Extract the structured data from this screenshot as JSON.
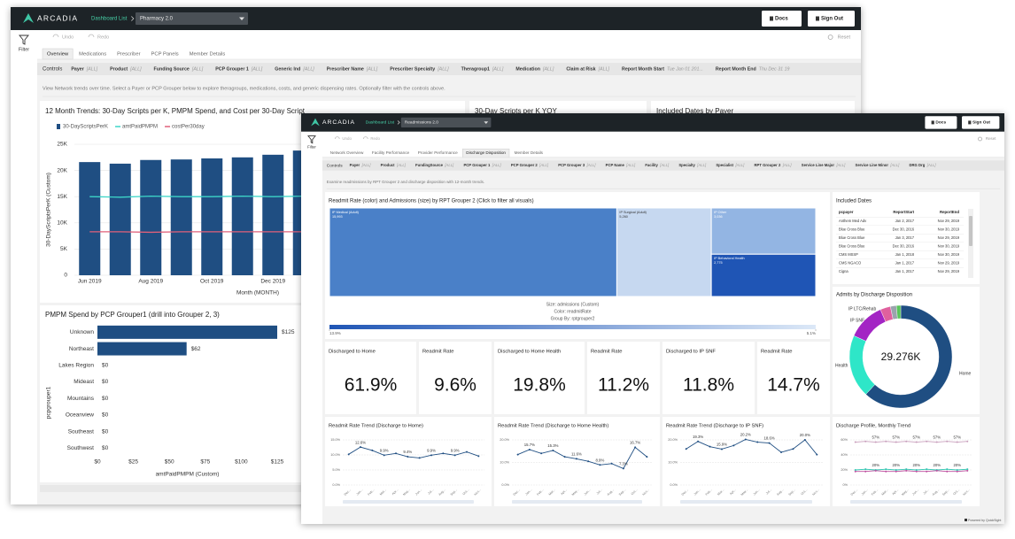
{
  "back": {
    "header": {
      "logo": "ARCADIA",
      "nav": "Dashboard List",
      "dashboard": "Pharmacy 2.0",
      "docs": "Docs",
      "signout": "Sign Out"
    },
    "sidebar": {
      "filter": "Filter"
    },
    "toolbar": {
      "undo": "Undo",
      "redo": "Redo",
      "reset": "Reset"
    },
    "tabs": [
      "Overview",
      "Medications",
      "Prescriber",
      "PCP Panels",
      "Member Details"
    ],
    "controls": {
      "label": "Controls",
      "items": [
        {
          "name": "Payer",
          "value": "[ALL]"
        },
        {
          "name": "Product",
          "value": "[ALL]"
        },
        {
          "name": "Funding Source",
          "value": "[ALL]"
        },
        {
          "name": "PCP Grouper 1",
          "value": "[ALL]"
        },
        {
          "name": "Generic Ind",
          "value": "[ALL]"
        },
        {
          "name": "Prescriber Name",
          "value": "[ALL]"
        },
        {
          "name": "Prescriber Specialty",
          "value": "[ALL]"
        },
        {
          "name": "Theragroup1",
          "value": "[ALL]"
        },
        {
          "name": "Medication",
          "value": "[ALL]"
        },
        {
          "name": "Claim at Risk",
          "value": "[ALL]"
        },
        {
          "name": "Report Month Start",
          "value": "Tue Jan 01 201..."
        },
        {
          "name": "Report Month End",
          "value": "Thu Dec 31 19"
        }
      ]
    },
    "description": "View Network trends over time. Select a Payer or PCP Grouper below to explore theragroups, medications, costs, and generic dispensing rates. Optionally filter with the controls above.",
    "cards": [
      "30-Day Scripts per K YOY",
      "Included Dates by Payer"
    ]
  },
  "front": {
    "header": {
      "logo": "ARCADIA",
      "nav": "Dashboard List",
      "dashboard": "Readmissions 2.0",
      "docs": "Docs",
      "signout": "Sign Out"
    },
    "sidebar": {
      "filter": "Filter"
    },
    "toolbar": {
      "undo": "Undo",
      "redo": "Redo",
      "reset": "Reset"
    },
    "tabs": [
      "Network Overview",
      "Facility Performance",
      "Provider Performance",
      "Discharge Disposition",
      "Member Details"
    ],
    "controls": {
      "label": "Controls",
      "items": [
        {
          "name": "Payer",
          "value": "[ALL]"
        },
        {
          "name": "Product",
          "value": "[ALL]"
        },
        {
          "name": "FundingSource",
          "value": "[ALL]"
        },
        {
          "name": "PCP Grouper 1",
          "value": "[ALL]"
        },
        {
          "name": "PCP Grouper 2",
          "value": "[ALL]"
        },
        {
          "name": "PCP Grouper 3",
          "value": "[ALL]"
        },
        {
          "name": "PCP Name",
          "value": "[ALL]"
        },
        {
          "name": "Facility",
          "value": "[ALL]"
        },
        {
          "name": "Specialty",
          "value": "[ALL]"
        },
        {
          "name": "Specialist",
          "value": "[ALL]"
        },
        {
          "name": "RPT Grouper 2",
          "value": "[ALL]"
        },
        {
          "name": "Service Line Major",
          "value": "[ALL]"
        },
        {
          "name": "Service Line Minor",
          "value": "[ALL]"
        },
        {
          "name": "DRG Drg",
          "value": "[ALL]"
        }
      ]
    },
    "description": "Examine readmissions by RPT Grouper 2 and discharge disposition with 12-month trends.",
    "kpis": [
      {
        "label": "Discharged to Home",
        "value": "61.9%"
      },
      {
        "label": "Readmit Rate",
        "value": "9.6%"
      },
      {
        "label": "Discharged to Home Health",
        "value": "19.8%"
      },
      {
        "label": "Readmit Rate",
        "value": "11.2%"
      },
      {
        "label": "Discharged to IP SNF",
        "value": "11.8%"
      },
      {
        "label": "Readmit Rate",
        "value": "14.7%"
      }
    ],
    "table": {
      "title": "Included Dates",
      "headers": [
        "pcpayer",
        "ReportStart",
        "ReportEnd"
      ],
      "rows": [
        [
          "Anthem Med Adv",
          "Jan 2, 2017",
          "Nov 29, 2019"
        ],
        [
          "Blue Cross Blue",
          "Dec 30, 2016",
          "Nov 30, 2019"
        ],
        [
          "Blue Cross Blue",
          "Jan 3, 2017",
          "Nov 29, 2019"
        ],
        [
          "Blue Cross Blue",
          "Dec 30, 2016",
          "Nov 30, 2019"
        ],
        [
          "CMS MSSP",
          "Jan 1, 2018",
          "Nov 30, 2019"
        ],
        [
          "CMS NGACO",
          "Jan 1, 2017",
          "Nov 29, 2019"
        ],
        [
          "Cigna",
          "Jan 1, 2017",
          "Nov 29, 2019"
        ]
      ]
    },
    "footer": "Powered by QuickSight"
  },
  "chart_data": [
    {
      "type": "bar",
      "title": "12 Month Trends: 30-Day Scripts per K, PMPM Spend, and Cost per 30-Day Script",
      "categories": [
        "Jun 2019",
        null,
        "Aug 2019",
        null,
        "Oct 2019",
        null,
        "Dec 2019",
        null
      ],
      "series": [
        {
          "name": "30-DayScriptsPerK",
          "type": "bar",
          "color": "#1f4e82",
          "values": [
            21600,
            21300,
            22000,
            22100,
            22300,
            22500,
            23000,
            23800
          ]
        },
        {
          "name": "amtPaidPMPM",
          "type": "line",
          "color": "#3dd6c8",
          "values": [
            15000,
            14900,
            15100,
            15000,
            15000,
            15100,
            15000,
            15100
          ]
        },
        {
          "name": "costPer30day",
          "type": "line",
          "color": "#e0607a",
          "values": [
            8300,
            8300,
            8200,
            8300,
            8300,
            8300,
            8300,
            8300
          ]
        }
      ],
      "ylim": [
        0,
        25000
      ],
      "yticks": [
        0,
        {
          "value": 5000,
          "label": "5K"
        },
        {
          "value": 10000,
          "label": "10K"
        },
        {
          "value": 15000,
          "label": "15K"
        },
        {
          "value": 20000,
          "label": "20K"
        },
        {
          "value": 25000,
          "label": "25K"
        }
      ],
      "y_label": "30-DayScriptsPerK (Custom)",
      "x_label": "Month (MONTH)",
      "grid": true
    },
    {
      "type": "bar",
      "orientation": "horizontal",
      "title": "PMPM Spend by PCP Grouper1 (drill into Grouper 2, 3)",
      "categories": [
        "Unknown",
        "Northeast",
        "Lakes Region",
        "Mideast",
        "Mountains",
        "Oceanview",
        "Southeast",
        "Southwest"
      ],
      "values": [
        125,
        62,
        0,
        0,
        0,
        0,
        0,
        0
      ],
      "value_labels": [
        "$125",
        "$62",
        "$0",
        "$0",
        "$0",
        "$0",
        "$0",
        "$0"
      ],
      "color": "#1f4e82",
      "xlim": [
        0,
        125
      ],
      "xticks": [
        {
          "value": 0,
          "label": "$0"
        },
        {
          "value": 25,
          "label": "$25"
        },
        {
          "value": 50,
          "label": "$50"
        },
        {
          "value": 75,
          "label": "$75"
        },
        {
          "value": 100,
          "label": "$100"
        },
        {
          "value": 125,
          "label": "$125"
        }
      ],
      "x_label": "amtPaidPMPM (Custom)",
      "y_label": "pcpgrouper1"
    },
    {
      "type": "treemap",
      "title": "Readmit Rate (color) and Admissions (size) by RPT Grouper 2 (Click to filter all visuals)",
      "nodes": [
        {
          "name": "IP Medical (Adult)",
          "value": 15993,
          "value_label": "15,993",
          "color": "#4a80c8"
        },
        {
          "name": "IP Surgical (Adult)",
          "value": 5260,
          "value_label": "5,260",
          "color": "#c6d8f0"
        },
        {
          "name": "IP Other",
          "value": 3036,
          "value_label": "3,036",
          "color": "#93b5e3"
        },
        {
          "name": "IP Behavioral Health",
          "value": 2775,
          "value_label": "2,775",
          "color": "#1f55b5"
        }
      ],
      "caption": [
        "Size: admissions (Custom)",
        "Color: readmitRate",
        "Group By: rptgrouper2"
      ],
      "color_range": [
        {
          "value": 13.9,
          "label": "13.9%",
          "color": "#1f55b5"
        },
        {
          "value": 5.1,
          "label": "5.1%",
          "color": "#dce8f7"
        }
      ]
    },
    {
      "type": "pie",
      "donut": true,
      "title": "Admits by Discharge Disposition",
      "center_label": "29.276K",
      "categories": [
        "Home",
        "Health",
        "IP SNF",
        "IP LTC/Rehab",
        null,
        null
      ],
      "values": [
        18120,
        5800,
        3460,
        950,
        550,
        396
      ],
      "colors": [
        "#1f4e82",
        "#2ee6c8",
        "#a324c4",
        "#e0609e",
        "#9aa4ad",
        "#58c45a"
      ]
    },
    {
      "type": "line",
      "title": "Readmit Rate Trend (Discharge to Home)",
      "categories": [
        "Dec...",
        "Jan...",
        "Feb...",
        "Mar...",
        "Apr...",
        "May...",
        "Jun...",
        "Jul...",
        "Aug...",
        "Sep...",
        "Oct...",
        "Nov..."
      ],
      "series": [
        {
          "color": "#1f4e82",
          "values": [
            10.2,
            12.6,
            11.5,
            9.9,
            10.5,
            9.4,
            9.0,
            9.9,
            10.5,
            9.9,
            11.0,
            9.6
          ],
          "value_labels": [
            null,
            "12.6%",
            null,
            "9.9%",
            null,
            "9.4%",
            null,
            "9.9%",
            null,
            "9.9%",
            null,
            null
          ]
        }
      ],
      "ylim": [
        0,
        15
      ],
      "yticks": [
        {
          "value": 0,
          "label": "0.0%"
        },
        {
          "value": 5,
          "label": "5.0%"
        },
        {
          "value": 10,
          "label": "10.0%"
        },
        {
          "value": 15,
          "label": "15.0%"
        }
      ],
      "grid": true
    },
    {
      "type": "line",
      "title": "Readmit Rate Trend (Discharge to Home Health)",
      "categories": [
        "Dec...",
        "Jan...",
        "Feb...",
        "Mar...",
        "Apr...",
        "May...",
        "Jun...",
        "Jul...",
        "Aug...",
        "Sep...",
        "Oct...",
        "Nov..."
      ],
      "series": [
        {
          "color": "#1f4e82",
          "values": [
            13.5,
            15.7,
            14.0,
            15.3,
            12.5,
            11.6,
            10.5,
            8.9,
            9.5,
            7.3,
            16.7,
            12.5
          ],
          "value_labels": [
            null,
            "15.7%",
            null,
            "15.3%",
            null,
            "11.6%",
            null,
            "8.9%",
            null,
            "7.3%",
            "16.7%",
            null
          ]
        }
      ],
      "ylim": [
        0,
        20
      ],
      "yticks": [
        {
          "value": 0,
          "label": "0.0%"
        },
        {
          "value": 10,
          "label": "10.0%"
        },
        {
          "value": 20,
          "label": "20.0%"
        }
      ],
      "grid": true
    },
    {
      "type": "line",
      "title": "Readmit Rate Trend (Discharge to IP SNF)",
      "categories": [
        "Dec...",
        "Jan...",
        "Feb...",
        "Mar...",
        "Apr...",
        "May...",
        "Jun...",
        "Jul...",
        "Aug...",
        "Sep...",
        "Oct...",
        "Nov..."
      ],
      "series": [
        {
          "color": "#1f4e82",
          "values": [
            16.0,
            19.3,
            17.0,
            15.9,
            17.5,
            20.2,
            19.0,
            18.6,
            14.5,
            16.0,
            20.0,
            13.5
          ],
          "value_labels": [
            null,
            "19.3%",
            null,
            "15.9%",
            null,
            "20.2%",
            null,
            "18.6%",
            null,
            null,
            "20.0%",
            null
          ]
        }
      ],
      "ylim": [
        0,
        20
      ],
      "yticks": [
        {
          "value": 0,
          "label": "0.0%"
        },
        {
          "value": 10,
          "label": "10.0%"
        },
        {
          "value": 20,
          "label": "20.0%"
        }
      ],
      "grid": true
    },
    {
      "type": "line",
      "title": "Discharge Profile, Monthly Trend",
      "categories": [
        "Dec...",
        "Jan...",
        "Feb...",
        "Mar...",
        "Apr...",
        "May...",
        "Jun...",
        "Jul...",
        "Aug...",
        "Sep...",
        "Oct...",
        "Nov..."
      ],
      "series": [
        {
          "color": "#c9a0bd",
          "values": [
            57,
            58,
            57,
            58,
            57,
            58,
            57,
            58,
            57,
            58,
            57,
            58
          ],
          "value_labels": [
            null,
            null,
            "57%",
            null,
            "57%",
            null,
            "57%",
            null,
            "57%",
            null,
            "57%",
            null
          ]
        },
        {
          "color": "#2ec4b0",
          "values": [
            20,
            21,
            20,
            21,
            20,
            21,
            20,
            21,
            20,
            21,
            20,
            21
          ],
          "value_labels": [
            null,
            null,
            "20%",
            null,
            "20%",
            null,
            "20%",
            null,
            "20%",
            null,
            "20%",
            null
          ]
        },
        {
          "color": "#c050a0",
          "values": [
            18,
            18,
            19,
            18,
            18,
            19,
            18,
            18,
            19,
            18,
            18,
            19
          ]
        }
      ],
      "ylim": [
        0,
        60
      ],
      "yticks": [
        {
          "value": 0,
          "label": "0%"
        },
        {
          "value": 20,
          "label": "20%"
        },
        {
          "value": 40,
          "label": "40%"
        },
        {
          "value": 60,
          "label": "60%"
        }
      ],
      "grid": true
    }
  ]
}
